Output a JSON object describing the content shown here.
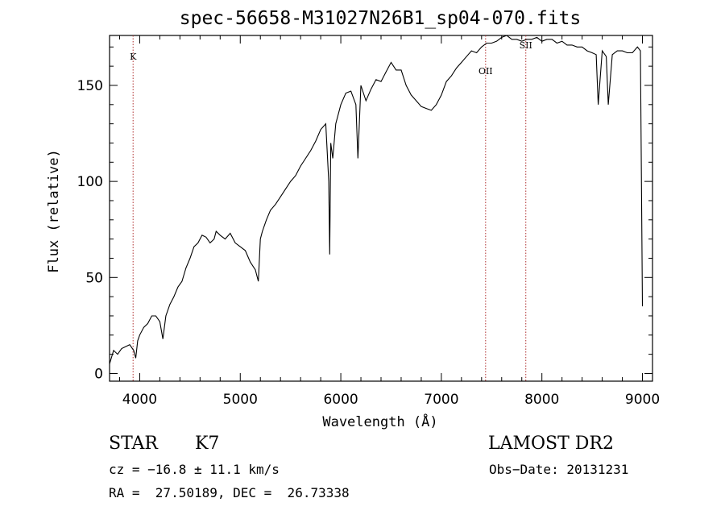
{
  "chart_data": {
    "type": "line",
    "title": "spec-56658-M31027N26B1_sp04-070.fits",
    "xlabel": "Wavelength (Å)",
    "ylabel": "Flux (relative)",
    "xlim": [
      3700,
      9100
    ],
    "ylim": [
      -4,
      176
    ],
    "xticks": [
      4000,
      5000,
      6000,
      7000,
      8000,
      9000
    ],
    "xtick_labels": [
      "4000",
      "5000",
      "6000",
      "7000",
      "8000",
      "9000"
    ],
    "yticks": [
      0,
      50,
      100,
      150
    ],
    "ytick_labels": [
      "0",
      "50",
      "100",
      "150"
    ],
    "grid": false,
    "line_color": "#000000",
    "marker_color": "#b03030",
    "line_markers": [
      {
        "label": "K",
        "x": 3934
      },
      {
        "label": "OII",
        "x": 7440
      },
      {
        "label": "SII",
        "x": 7840
      }
    ],
    "series": [
      {
        "x": [
          3700,
          3740,
          3780,
          3820,
          3860,
          3900,
          3940,
          3960,
          3980,
          4000,
          4040,
          4080,
          4120,
          4160,
          4200,
          4230,
          4260,
          4300,
          4340,
          4380,
          4420,
          4460,
          4500,
          4540,
          4580,
          4620,
          4660,
          4700,
          4740,
          4760,
          4800,
          4850,
          4900,
          4950,
          5000,
          5050,
          5100,
          5150,
          5180,
          5200,
          5220,
          5260,
          5300,
          5350,
          5400,
          5450,
          5500,
          5550,
          5600,
          5650,
          5700,
          5750,
          5800,
          5850,
          5880,
          5890,
          5900,
          5920,
          5950,
          6000,
          6050,
          6100,
          6150,
          6170,
          6200,
          6250,
          6300,
          6350,
          6400,
          6450,
          6500,
          6550,
          6600,
          6650,
          6700,
          6750,
          6800,
          6850,
          6900,
          6950,
          7000,
          7050,
          7100,
          7150,
          7200,
          7250,
          7300,
          7350,
          7400,
          7450,
          7500,
          7550,
          7600,
          7650,
          7700,
          7750,
          7800,
          7850,
          7900,
          7950,
          8000,
          8050,
          8100,
          8150,
          8200,
          8250,
          8300,
          8350,
          8400,
          8450,
          8500,
          8540,
          8560,
          8600,
          8640,
          8660,
          8700,
          8750,
          8800,
          8850,
          8900,
          8950,
          8980,
          9000
        ],
        "y": [
          5,
          12,
          10,
          13,
          14,
          15,
          12,
          8,
          17,
          20,
          24,
          26,
          30,
          30,
          27,
          18,
          30,
          36,
          40,
          45,
          48,
          55,
          60,
          66,
          68,
          72,
          71,
          68,
          70,
          74,
          72,
          70,
          73,
          68,
          66,
          64,
          58,
          54,
          48,
          70,
          74,
          80,
          85,
          88,
          92,
          96,
          100,
          103,
          108,
          112,
          116,
          121,
          127,
          130,
          100,
          62,
          120,
          112,
          130,
          140,
          146,
          147,
          140,
          112,
          150,
          142,
          148,
          153,
          152,
          157,
          162,
          158,
          158,
          150,
          145,
          142,
          139,
          138,
          137,
          140,
          145,
          152,
          155,
          159,
          162,
          165,
          168,
          167,
          170,
          172,
          172,
          173,
          175,
          176,
          174,
          174,
          173,
          174,
          174,
          175,
          173,
          174,
          174,
          172,
          173,
          171,
          171,
          170,
          170,
          168,
          167,
          166,
          140,
          168,
          165,
          140,
          166,
          168,
          168,
          167,
          167,
          170,
          168,
          35
        ]
      }
    ]
  },
  "info": {
    "object_class": "STAR",
    "subclass": "K7",
    "survey": "LAMOST DR2",
    "cz_line": "cz = −16.8 ± 11.1 km/s",
    "obs_date_line": "Obs−Date: 20131231",
    "coords_line": "RA =  27.50189, DEC =  26.73338"
  }
}
